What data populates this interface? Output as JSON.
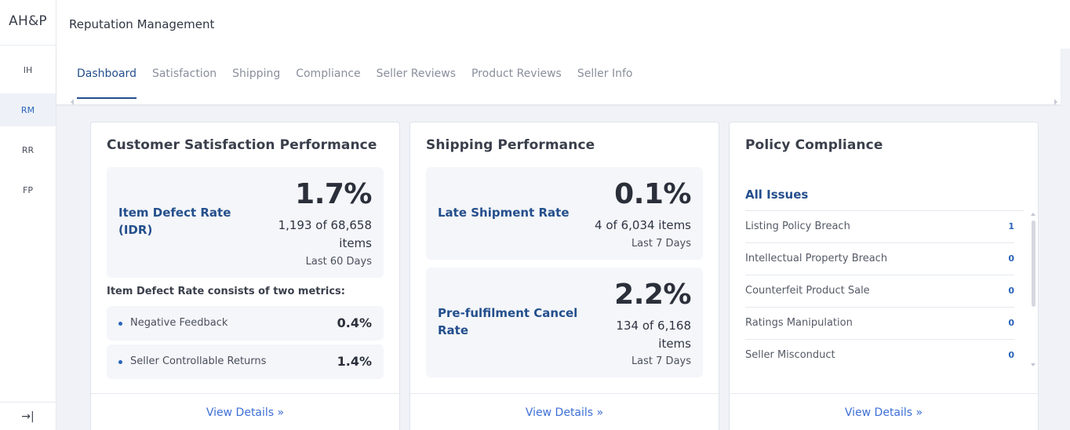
{
  "rail": {
    "logo": "AH&P",
    "items": [
      {
        "label": "IH",
        "active": false
      },
      {
        "label": "RM",
        "active": true
      },
      {
        "label": "RR",
        "active": false
      },
      {
        "label": "FP",
        "active": false
      }
    ],
    "collapse_icon": "→|"
  },
  "header": {
    "title": "Reputation Management"
  },
  "tabs": [
    {
      "label": "Dashboard",
      "active": true
    },
    {
      "label": "Satisfaction",
      "active": false
    },
    {
      "label": "Shipping",
      "active": false
    },
    {
      "label": "Compliance",
      "active": false
    },
    {
      "label": "Seller Reviews",
      "active": false
    },
    {
      "label": "Product Reviews",
      "active": false
    },
    {
      "label": "Seller Info",
      "active": false
    }
  ],
  "customer_satisfaction": {
    "title": "Customer Satisfaction Performance",
    "idr": {
      "label_line1": "Item Defect Rate",
      "label_line2": "(IDR)",
      "value": "1.7%",
      "count_line1": "1,193 of 68,658",
      "count_line2": "items",
      "period": "Last 60 Days"
    },
    "consists_label": "Item Defect Rate consists of two metrics:",
    "metrics": [
      {
        "label": "Negative Feedback",
        "value": "0.4%"
      },
      {
        "label": "Seller Controllable Returns",
        "value": "1.4%"
      }
    ],
    "view_details": "View Details »"
  },
  "shipping": {
    "title": "Shipping Performance",
    "late": {
      "label": "Late Shipment Rate",
      "value": "0.1%",
      "count": "4 of 6,034 items",
      "period": "Last 7 Days"
    },
    "cancel": {
      "label_line1": "Pre-fulfilment Cancel",
      "label_line2": "Rate",
      "value": "2.2%",
      "count_line1": "134 of 6,168",
      "count_line2": "items",
      "period": "Last 7 Days"
    },
    "view_details": "View Details »"
  },
  "policy": {
    "title": "Policy Compliance",
    "all_issues": "All Issues",
    "issues": [
      {
        "label": "Listing Policy Breach",
        "count": "1"
      },
      {
        "label": "Intellectual Property Breach",
        "count": "0"
      },
      {
        "label": "Counterfeit Product Sale",
        "count": "0"
      },
      {
        "label": "Ratings Manipulation",
        "count": "0"
      },
      {
        "label": "Seller Misconduct",
        "count": "0"
      }
    ],
    "view_details": "View Details »"
  },
  "colors": {
    "accent_link": "#3d6fd6",
    "heading_blue": "#244f8c",
    "page_bg": "#f0f2f7"
  }
}
